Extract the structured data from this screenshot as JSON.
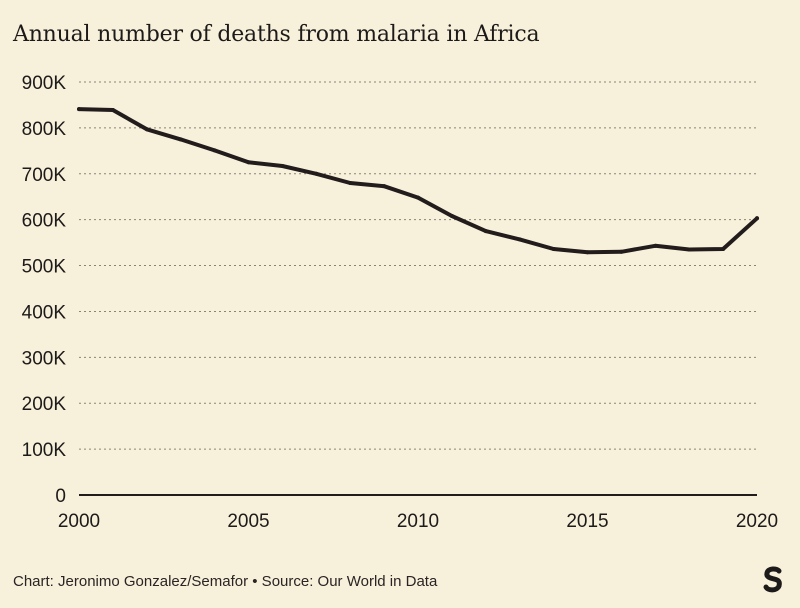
{
  "title": "Annual number of deaths from malaria in Africa",
  "source": "Chart: Jeronimo Gonzalez/Semafor • Source: Our World in Data",
  "logo": "Semafor",
  "colors": {
    "background": "#f7f0da",
    "line": "#221c1c",
    "grid": "#8a8478",
    "text": "#1d1a1a"
  },
  "chart_data": {
    "type": "line",
    "title": "Annual number of deaths from malaria in Africa",
    "xlabel": "",
    "ylabel": "",
    "xlim": [
      2000,
      2020
    ],
    "ylim": [
      0,
      900000
    ],
    "grid": true,
    "x_ticks": [
      2000,
      2005,
      2010,
      2015,
      2020
    ],
    "x_tick_labels": [
      "2000",
      "2005",
      "2010",
      "2015",
      "2020"
    ],
    "y_ticks": [
      0,
      100000,
      200000,
      300000,
      400000,
      500000,
      600000,
      700000,
      800000,
      900000
    ],
    "y_tick_labels": [
      "0",
      "100K",
      "200K",
      "300K",
      "400K",
      "500K",
      "600K",
      "700K",
      "800K",
      "900K"
    ],
    "x": [
      2000,
      2001,
      2002,
      2003,
      2004,
      2005,
      2006,
      2007,
      2008,
      2009,
      2010,
      2011,
      2012,
      2013,
      2014,
      2015,
      2016,
      2017,
      2018,
      2019,
      2020
    ],
    "values": [
      841000,
      839000,
      797000,
      775000,
      751000,
      725000,
      717000,
      700000,
      680000,
      673000,
      648000,
      608000,
      575000,
      557000,
      536000,
      529000,
      530000,
      543000,
      535000,
      536000,
      603000
    ]
  }
}
